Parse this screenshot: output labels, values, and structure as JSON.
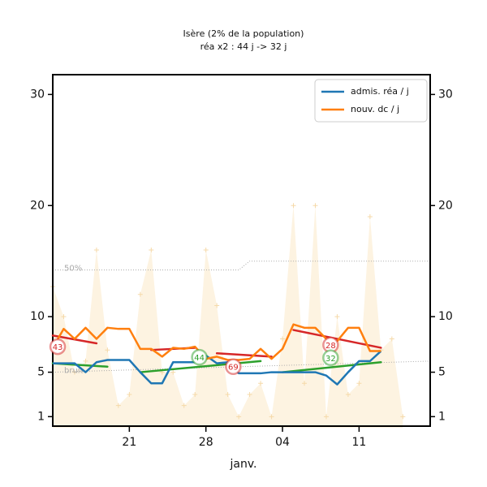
{
  "chart_data": {
    "type": "line",
    "title": "Isère (2% de la population)",
    "subtitle": "réa x2 : 44 j -> 32 j",
    "xlabel": "janv.",
    "x": [
      0,
      1,
      2,
      3,
      4,
      5,
      6,
      7,
      8,
      9,
      10,
      11,
      12,
      13,
      14,
      15,
      16,
      17,
      18,
      19,
      20,
      21,
      22,
      23,
      24,
      25,
      26,
      27,
      28,
      29,
      30
    ],
    "xlim": [
      0,
      34.5
    ],
    "xticks": [
      {
        "value": 7,
        "label": "21"
      },
      {
        "value": 14,
        "label": "28"
      },
      {
        "value": 21,
        "label": "04"
      },
      {
        "value": 28,
        "label": "11"
      }
    ],
    "ylim": [
      0,
      32
    ],
    "yticks": [
      1,
      5,
      10,
      20,
      30
    ],
    "legend": "upper right",
    "series": [
      {
        "name": "admis. réa / j",
        "color": "#1f77b4",
        "values": [
          5.8,
          5.8,
          5.8,
          5.0,
          5.9,
          6.1,
          6.1,
          6.1,
          5.0,
          4.0,
          4.0,
          5.9,
          5.9,
          5.9,
          6.5,
          5.8,
          5.9,
          4.9,
          4.9,
          4.9,
          5.0,
          5.0,
          5.0,
          5.0,
          5.0,
          4.7,
          3.9,
          5.0,
          6.0,
          6.0,
          6.9
        ]
      },
      {
        "name": "nouv. dc / j",
        "color": "#ff7f0e",
        "values": [
          7.2,
          8.9,
          8.0,
          9.0,
          8.0,
          9.0,
          8.9,
          8.9,
          7.1,
          7.1,
          6.4,
          7.2,
          7.1,
          7.3,
          6.2,
          6.4,
          6.1,
          6.1,
          6.2,
          7.1,
          6.2,
          7.1,
          9.3,
          9.0,
          9.0,
          8.0,
          7.8,
          9.0,
          9.0,
          6.9,
          6.9
        ]
      }
    ],
    "raw": {
      "color": "#fdf3e1",
      "marker_color": "#f5d9a8",
      "x": [
        0,
        1,
        2,
        3,
        4,
        5,
        6,
        7,
        8,
        9,
        10,
        11,
        12,
        13,
        14,
        15,
        16,
        17,
        18,
        19,
        20,
        21,
        22,
        23,
        24,
        25,
        26,
        27,
        28,
        29,
        30,
        31,
        32
      ],
      "values": [
        12.7,
        10,
        5,
        6,
        16,
        7,
        2,
        3,
        12,
        16,
        5,
        5,
        2,
        3,
        16,
        11,
        3,
        1,
        3,
        4,
        1,
        8,
        20,
        4,
        20,
        1,
        10,
        3,
        4,
        19,
        7,
        8,
        1
      ]
    },
    "trends": [
      {
        "color": "#2ca02c",
        "x": [
          0,
          5
        ],
        "values": [
          5.8,
          5.5
        ]
      },
      {
        "color": "#2ca02c",
        "x": [
          8,
          19
        ],
        "values": [
          5.0,
          6.0
        ]
      },
      {
        "color": "#2ca02c",
        "x": [
          21,
          30
        ],
        "values": [
          5.0,
          5.9
        ]
      },
      {
        "color": "#d62728",
        "x": [
          0,
          4
        ],
        "values": [
          8.3,
          7.6
        ]
      },
      {
        "color": "#d62728",
        "x": [
          9,
          13
        ],
        "values": [
          7.0,
          7.2
        ]
      },
      {
        "color": "#d62728",
        "x": [
          15,
          20
        ],
        "values": [
          6.7,
          6.4
        ]
      },
      {
        "color": "#d62728",
        "x": [
          22,
          30
        ],
        "values": [
          8.8,
          7.2
        ]
      }
    ],
    "reference_lines": [
      {
        "label": "50%",
        "x": [
          0,
          17,
          18,
          34.5
        ],
        "values": [
          14.2,
          14.2,
          15,
          15
        ]
      },
      {
        "label": "bruit",
        "x": [
          0,
          34.5
        ],
        "values": [
          5.0,
          6.0
        ]
      }
    ],
    "annotations": [
      {
        "label": "43",
        "x": 0.45,
        "y": 7.3,
        "color": "#d62728"
      },
      {
        "label": "44",
        "x": 13.4,
        "y": 6.35,
        "color": "#2ca02c"
      },
      {
        "label": "69",
        "x": 16.5,
        "y": 5.5,
        "color": "#d62728"
      },
      {
        "label": "28",
        "x": 25.4,
        "y": 7.45,
        "color": "#d62728"
      },
      {
        "label": "32",
        "x": 25.4,
        "y": 6.3,
        "color": "#2ca02c"
      }
    ]
  }
}
